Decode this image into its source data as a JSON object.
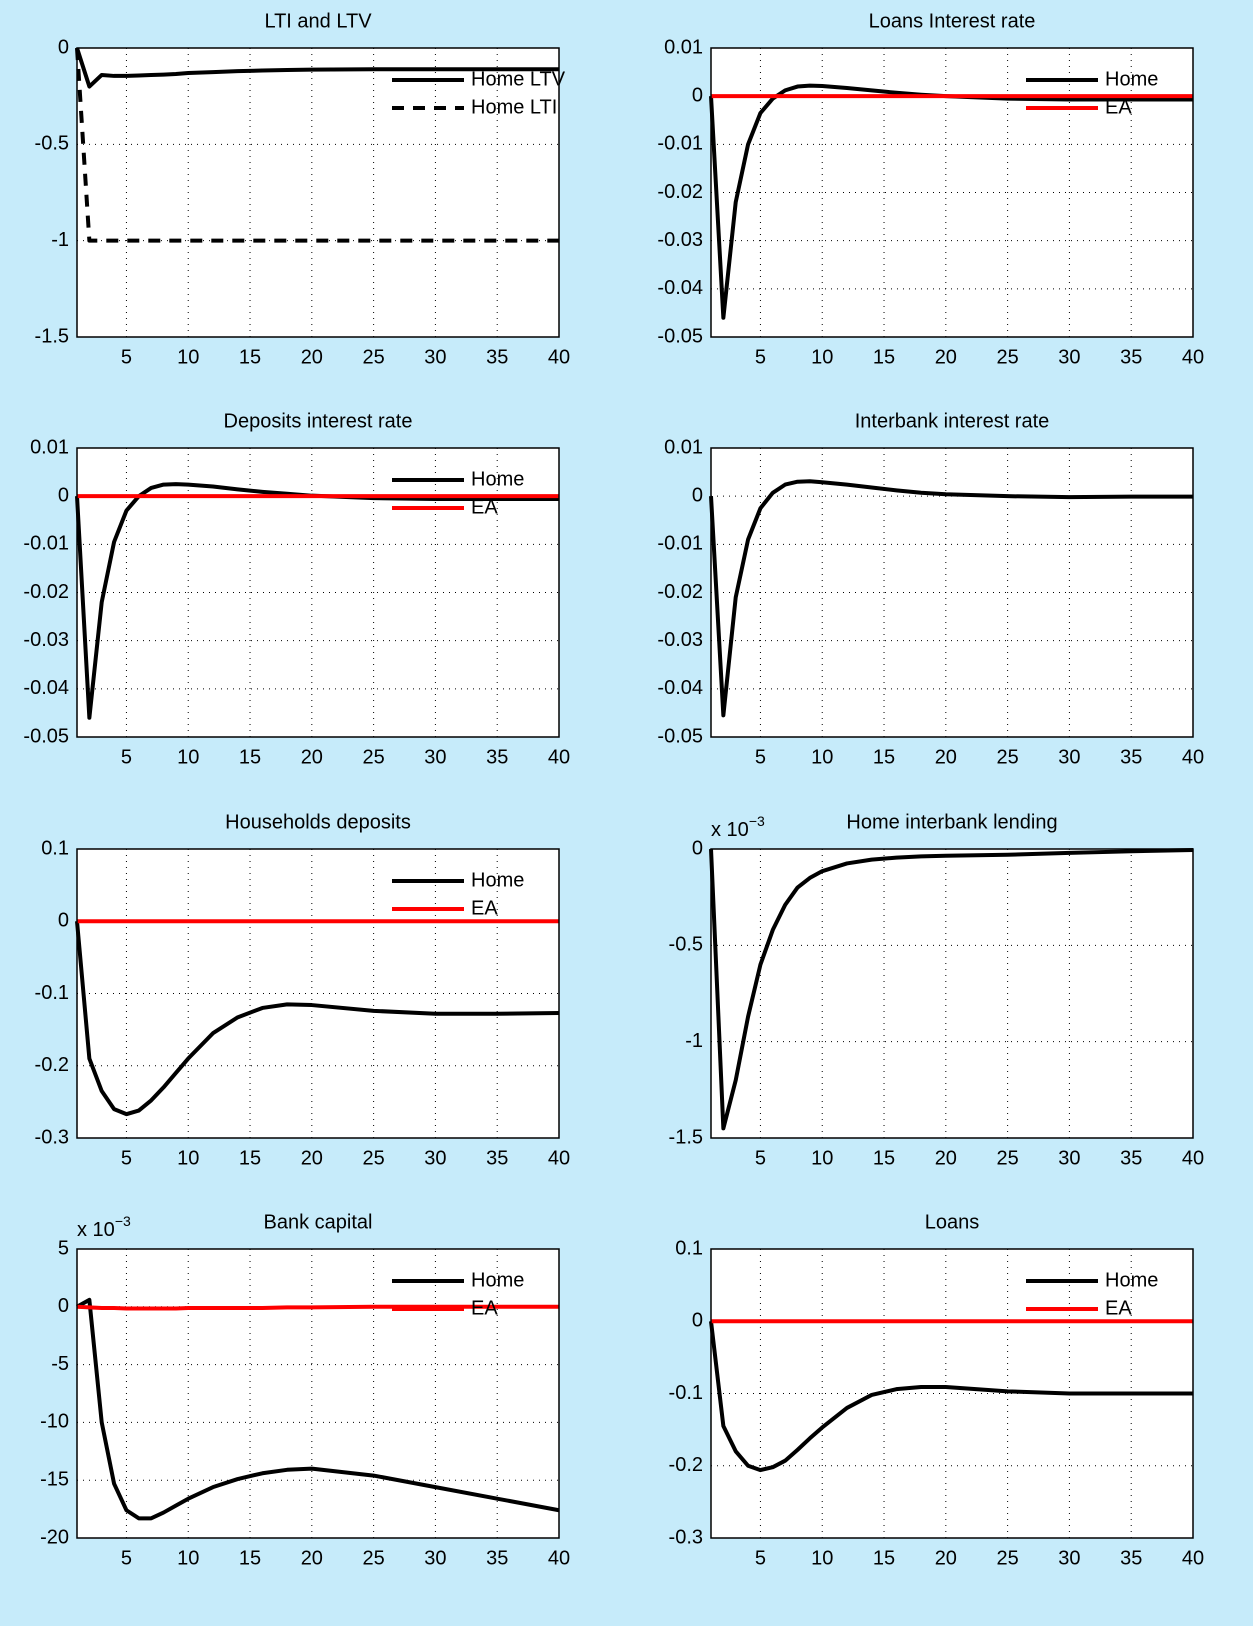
{
  "chart_data": [
    {
      "type": "line",
      "title": "LTI and LTV",
      "x": [
        1,
        2,
        3,
        4,
        5,
        6,
        7,
        8,
        9,
        10,
        12,
        14,
        16,
        18,
        20,
        25,
        30,
        35,
        40
      ],
      "series": [
        {
          "name": "Home LTV",
          "color": "#000000",
          "values": [
            0,
            -0.2,
            -0.14,
            -0.145,
            -0.145,
            -0.143,
            -0.14,
            -0.138,
            -0.135,
            -0.13,
            -0.125,
            -0.12,
            -0.117,
            -0.114,
            -0.112,
            -0.11,
            -0.11,
            -0.11,
            -0.11
          ]
        },
        {
          "name": "Home LTI",
          "color": "#000000",
          "dashed": true,
          "values": [
            0,
            -1,
            -1,
            -1,
            -1,
            -1,
            -1,
            -1,
            -1,
            -1,
            -1,
            -1,
            -1,
            -1,
            -1,
            -1,
            -1,
            -1,
            -1
          ]
        }
      ],
      "xlim": [
        1,
        40
      ],
      "xticks": [
        5,
        10,
        15,
        20,
        25,
        30,
        35,
        40
      ],
      "ylim": [
        -1.5,
        0
      ],
      "yticks": [
        -1.5,
        -1,
        -0.5,
        0
      ],
      "grid": true,
      "legend": "northeast"
    },
    {
      "type": "line",
      "title": "Loans Interest rate",
      "x": [
        1,
        2,
        3,
        4,
        5,
        6,
        7,
        8,
        9,
        10,
        12,
        14,
        16,
        18,
        20,
        25,
        30,
        35,
        40
      ],
      "series": [
        {
          "name": "Home",
          "color": "#000000",
          "values": [
            0,
            -0.046,
            -0.022,
            -0.01,
            -0.0035,
            -0.0005,
            0.0012,
            0.002,
            0.0022,
            0.0021,
            0.0017,
            0.0012,
            0.0007,
            0.0003,
            0,
            -0.0005,
            -0.0007,
            -0.0007,
            -0.0007
          ]
        },
        {
          "name": "EA",
          "color": "#ff0000",
          "values": [
            0,
            0,
            0,
            0,
            0,
            0,
            0,
            0,
            0,
            0,
            0,
            0,
            0,
            0,
            0,
            0,
            0,
            0,
            0
          ]
        }
      ],
      "xlim": [
        1,
        40
      ],
      "xticks": [
        5,
        10,
        15,
        20,
        25,
        30,
        35,
        40
      ],
      "ylim": [
        -0.05,
        0.01
      ],
      "yticks": [
        -0.05,
        -0.04,
        -0.03,
        -0.02,
        -0.01,
        0,
        0.01
      ],
      "grid": true,
      "legend": "northeast"
    },
    {
      "type": "line",
      "title": "Deposits interest rate",
      "x": [
        1,
        2,
        3,
        4,
        5,
        6,
        7,
        8,
        9,
        10,
        12,
        14,
        16,
        18,
        20,
        25,
        30,
        35,
        40
      ],
      "series": [
        {
          "name": "Home",
          "color": "#000000",
          "values": [
            0,
            -0.046,
            -0.022,
            -0.0095,
            -0.003,
            0,
            0.0017,
            0.0024,
            0.0025,
            0.0024,
            0.002,
            0.0014,
            0.0009,
            0.0005,
            0.0001,
            -0.0004,
            -0.0006,
            -0.0006,
            -0.0006
          ]
        },
        {
          "name": "EA",
          "color": "#ff0000",
          "values": [
            0,
            0,
            0,
            0,
            0,
            0,
            0,
            0,
            0,
            0,
            0,
            0,
            0,
            0,
            0,
            0,
            0,
            0,
            0
          ]
        }
      ],
      "xlim": [
        1,
        40
      ],
      "xticks": [
        5,
        10,
        15,
        20,
        25,
        30,
        35,
        40
      ],
      "ylim": [
        -0.05,
        0.01
      ],
      "yticks": [
        -0.05,
        -0.04,
        -0.03,
        -0.02,
        -0.01,
        0,
        0.01
      ],
      "grid": true,
      "legend": "northeast"
    },
    {
      "type": "line",
      "title": "Interbank interest rate",
      "x": [
        1,
        2,
        3,
        4,
        5,
        6,
        7,
        8,
        9,
        10,
        12,
        14,
        16,
        18,
        20,
        25,
        30,
        35,
        40
      ],
      "series": [
        {
          "color": "#000000",
          "values": [
            0,
            -0.0455,
            -0.021,
            -0.009,
            -0.0025,
            0.0007,
            0.0024,
            0.003,
            0.0031,
            0.0029,
            0.0024,
            0.0018,
            0.0012,
            0.0007,
            0.0004,
            0,
            -0.0002,
            -0.0001,
            -0.0001
          ]
        }
      ],
      "xlim": [
        1,
        40
      ],
      "xticks": [
        5,
        10,
        15,
        20,
        25,
        30,
        35,
        40
      ],
      "ylim": [
        -0.05,
        0.01
      ],
      "yticks": [
        -0.05,
        -0.04,
        -0.03,
        -0.02,
        -0.01,
        0,
        0.01
      ],
      "grid": true
    },
    {
      "type": "line",
      "title": "Households deposits",
      "x": [
        1,
        2,
        3,
        4,
        5,
        6,
        7,
        8,
        9,
        10,
        12,
        14,
        16,
        18,
        20,
        25,
        30,
        35,
        40
      ],
      "series": [
        {
          "name": "Home",
          "color": "#000000",
          "values": [
            0,
            -0.19,
            -0.235,
            -0.26,
            -0.267,
            -0.262,
            -0.248,
            -0.23,
            -0.21,
            -0.19,
            -0.155,
            -0.133,
            -0.12,
            -0.115,
            -0.116,
            -0.124,
            -0.128,
            -0.128,
            -0.127
          ]
        },
        {
          "name": "EA",
          "color": "#ff0000",
          "values": [
            0,
            0,
            0,
            0,
            0,
            0,
            0,
            0,
            0,
            0,
            0,
            0,
            0,
            0,
            0,
            0,
            0,
            0,
            0
          ]
        }
      ],
      "xlim": [
        1,
        40
      ],
      "xticks": [
        5,
        10,
        15,
        20,
        25,
        30,
        35,
        40
      ],
      "ylim": [
        -0.3,
        0.1
      ],
      "yticks": [
        -0.3,
        -0.2,
        -0.1,
        0,
        0.1
      ],
      "grid": true,
      "legend": "northeast"
    },
    {
      "type": "line",
      "title": "Home interbank lending",
      "axis_multiplier": {
        "base": "x 10",
        "exponent": "−3"
      },
      "x": [
        1,
        2,
        3,
        4,
        5,
        6,
        7,
        8,
        9,
        10,
        12,
        14,
        16,
        18,
        20,
        25,
        30,
        35,
        40
      ],
      "series": [
        {
          "color": "#000000",
          "values": [
            0,
            -1.45,
            -1.2,
            -0.87,
            -0.6,
            -0.42,
            -0.29,
            -0.2,
            -0.15,
            -0.115,
            -0.075,
            -0.055,
            -0.045,
            -0.038,
            -0.035,
            -0.03,
            -0.02,
            -0.012,
            -0.005
          ]
        }
      ],
      "xlim": [
        1,
        40
      ],
      "xticks": [
        5,
        10,
        15,
        20,
        25,
        30,
        35,
        40
      ],
      "ylim": [
        -1.5,
        0
      ],
      "yticks": [
        -1.5,
        -1,
        -0.5,
        0
      ],
      "grid": true
    },
    {
      "type": "line",
      "title": "Bank capital",
      "axis_multiplier": {
        "base": "x 10",
        "exponent": "−3"
      },
      "x": [
        1,
        2,
        3,
        4,
        5,
        6,
        7,
        8,
        9,
        10,
        12,
        14,
        16,
        18,
        20,
        25,
        30,
        35,
        40
      ],
      "series": [
        {
          "name": "Home",
          "color": "#000000",
          "values": [
            0,
            0.6,
            -10,
            -15.3,
            -17.6,
            -18.3,
            -18.3,
            -17.8,
            -17.2,
            -16.6,
            -15.6,
            -14.9,
            -14.4,
            -14.1,
            -14,
            -14.6,
            -15.6,
            -16.6,
            -17.6
          ]
        },
        {
          "name": "EA",
          "color": "#ff0000",
          "values": [
            0,
            -0.05,
            -0.1,
            -0.1,
            -0.15,
            -0.15,
            -0.15,
            -0.15,
            -0.15,
            -0.1,
            -0.1,
            -0.1,
            -0.1,
            -0.05,
            -0.05,
            0,
            0,
            0,
            0
          ]
        }
      ],
      "xlim": [
        1,
        40
      ],
      "xticks": [
        5,
        10,
        15,
        20,
        25,
        30,
        35,
        40
      ],
      "ylim": [
        -20,
        5
      ],
      "yticks": [
        -20,
        -15,
        -10,
        -5,
        0,
        5
      ],
      "grid": true,
      "legend": "northeast"
    },
    {
      "type": "line",
      "title": "Loans",
      "x": [
        1,
        2,
        3,
        4,
        5,
        6,
        7,
        8,
        9,
        10,
        12,
        14,
        16,
        18,
        20,
        25,
        30,
        35,
        40
      ],
      "series": [
        {
          "name": "Home",
          "color": "#000000",
          "values": [
            0,
            -0.145,
            -0.18,
            -0.2,
            -0.206,
            -0.202,
            -0.193,
            -0.178,
            -0.162,
            -0.147,
            -0.12,
            -0.102,
            -0.094,
            -0.091,
            -0.091,
            -0.097,
            -0.1,
            -0.1,
            -0.1
          ]
        },
        {
          "name": "EA",
          "color": "#ff0000",
          "values": [
            0,
            0,
            0,
            0,
            0,
            0,
            0,
            0,
            0,
            0,
            0,
            0,
            0,
            0,
            0,
            0,
            0,
            0,
            0
          ]
        }
      ],
      "xlim": [
        1,
        40
      ],
      "xticks": [
        5,
        10,
        15,
        20,
        25,
        30,
        35,
        40
      ],
      "ylim": [
        -0.3,
        0.1
      ],
      "yticks": [
        -0.3,
        -0.2,
        -0.1,
        0,
        0.1
      ],
      "grid": true,
      "legend": "northeast"
    }
  ]
}
